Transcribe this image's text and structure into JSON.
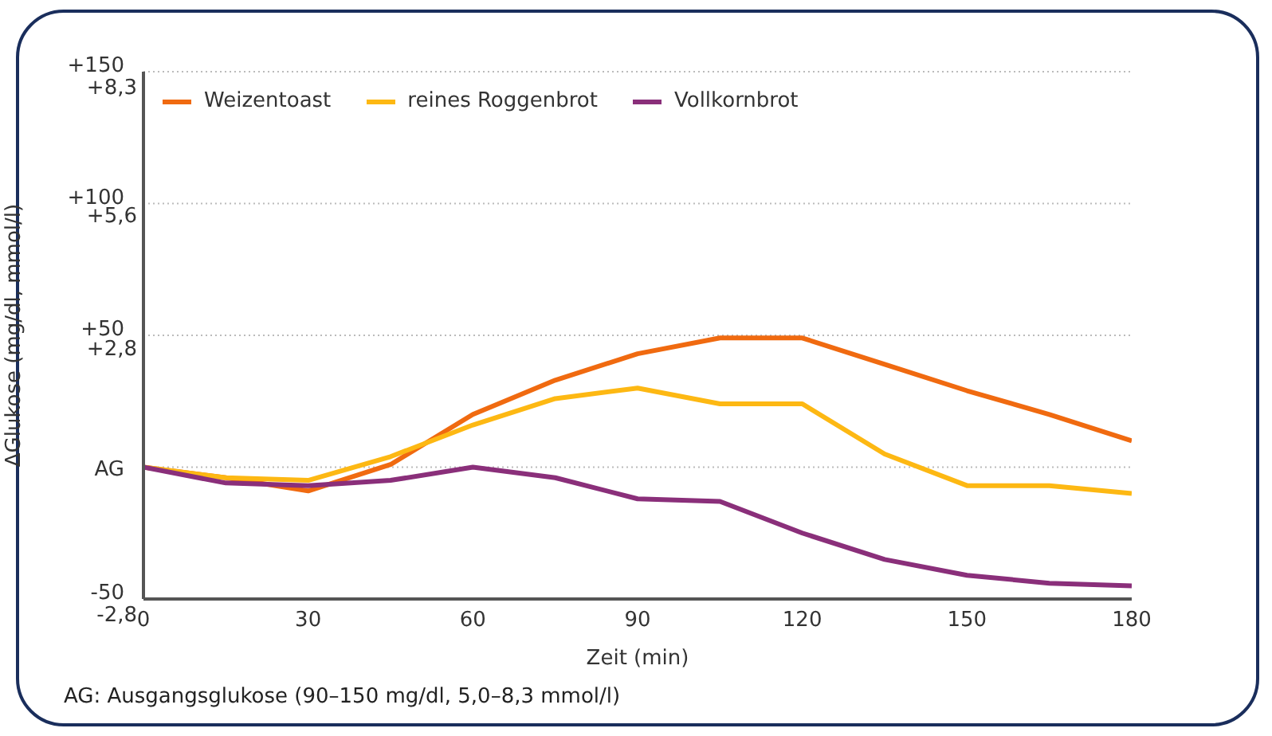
{
  "chart_data": {
    "type": "line",
    "xlabel": "Zeit (min)",
    "ylabel": "ΔGlukose (mg/dl, mmol/l)",
    "x": [
      0,
      15,
      30,
      45,
      60,
      75,
      90,
      105,
      120,
      135,
      150,
      165,
      180
    ],
    "series": [
      {
        "name": "Weizentoast",
        "color": "#f06a10",
        "values": [
          0,
          -4,
          -9,
          1,
          20,
          33,
          43,
          49,
          49,
          39,
          29,
          20,
          10
        ]
      },
      {
        "name": "reines Roggenbrot",
        "color": "#fdb813",
        "values": [
          0,
          -4,
          -5,
          4,
          16,
          26,
          30,
          24,
          24,
          5,
          -7,
          -7,
          -10
        ]
      },
      {
        "name": "Vollkornbrot",
        "color": "#8a2f7a",
        "values": [
          0,
          -6,
          -7,
          -5,
          0,
          -4,
          -12,
          -13,
          -25,
          -35,
          -41,
          -44,
          -45
        ]
      }
    ],
    "xlim": [
      0,
      180
    ],
    "xticks": [
      0,
      30,
      60,
      90,
      120,
      150,
      180
    ],
    "ylim": [
      -50,
      150
    ],
    "yticks": [
      {
        "value": -50,
        "label": "-50"
      },
      {
        "value": 0,
        "label": "AG"
      },
      {
        "value": 50,
        "label": "+50"
      },
      {
        "value": 100,
        "label": "+100"
      },
      {
        "value": 150,
        "label": "+150"
      }
    ],
    "y2lim": [
      -2.8,
      8.3
    ],
    "y2ticks": [
      {
        "value": -2.8,
        "label": "-2,8"
      },
      {
        "value": 2.8,
        "label": "+2,8"
      },
      {
        "value": 5.6,
        "label": "+5,6"
      },
      {
        "value": 8.3,
        "label": "+8,3"
      }
    ],
    "grid": "y",
    "legend": "top left",
    "marker": "none",
    "line_style": "solid",
    "annotations": [
      "AG: Ausgangsglukose (90–150 mg/dl, 5,0–8,3 mmol/l)"
    ]
  }
}
